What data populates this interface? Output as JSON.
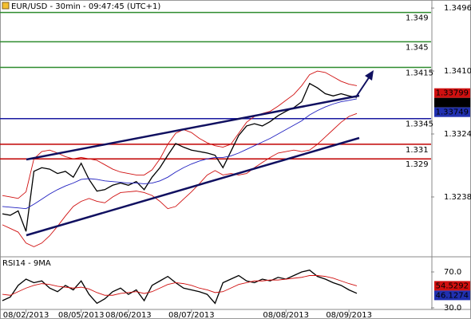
{
  "chart_data": [
    {
      "type": "line",
      "title": "EUR/USD - 30min - 09:47:45 (UTC+1)",
      "ylim": [
        1.3153,
        1.3507
      ],
      "yticks": [
        1.3238,
        1.3324,
        {
          "value": 1.341,
          "label": "1.3410"
        },
        1.3496
      ],
      "series": [
        {
          "color": "#000000",
          "values": [
            1.3215,
            1.3213,
            1.3219,
            1.3191,
            1.3273,
            1.3278,
            1.3276,
            1.327,
            1.3273,
            1.3265,
            1.3284,
            1.3262,
            1.3246,
            1.3248,
            1.3254,
            1.3257,
            1.3254,
            1.3259,
            1.3248,
            1.3265,
            1.3278,
            1.3295,
            1.3311,
            1.3306,
            1.3302,
            1.33,
            1.3298,
            1.3295,
            1.3278,
            1.33,
            1.3322,
            1.3335,
            1.3338,
            1.3335,
            1.3341,
            1.3349,
            1.3355,
            1.336,
            1.3368,
            1.3393,
            1.3387,
            1.3379,
            1.3376,
            1.3379,
            1.3376,
            1.3374
          ]
        },
        {
          "color": "#2020c0",
          "values": [
            1.3225,
            1.3224,
            1.3223,
            1.3222,
            1.3228,
            1.3235,
            1.3242,
            1.3248,
            1.3253,
            1.3257,
            1.3262,
            1.3263,
            1.3262,
            1.326,
            1.3259,
            1.3258,
            1.3257,
            1.3257,
            1.3256,
            1.3257,
            1.326,
            1.3265,
            1.3272,
            1.3278,
            1.3283,
            1.3287,
            1.329,
            1.3292,
            1.3292,
            1.3294,
            1.3298,
            1.3303,
            1.3308,
            1.3313,
            1.3318,
            1.3324,
            1.333,
            1.3336,
            1.3342,
            1.335,
            1.3356,
            1.3361,
            1.3365,
            1.3368,
            1.337,
            1.3372
          ]
        },
        {
          "color": "#d01010",
          "values": [
            1.324,
            1.3238,
            1.3236,
            1.3245,
            1.329,
            1.33,
            1.3302,
            1.3298,
            1.3293,
            1.329,
            1.3292,
            1.329,
            1.3288,
            1.3282,
            1.3276,
            1.3272,
            1.327,
            1.3268,
            1.3268,
            1.3275,
            1.329,
            1.331,
            1.3325,
            1.333,
            1.3326,
            1.3318,
            1.3312,
            1.3308,
            1.3306,
            1.331,
            1.3325,
            1.334,
            1.3348,
            1.3352,
            1.3355,
            1.3362,
            1.337,
            1.3378,
            1.339,
            1.3405,
            1.341,
            1.3408,
            1.3402,
            1.3396,
            1.3392,
            1.339
          ]
        },
        {
          "color": "#d01010",
          "values": [
            1.32,
            1.3195,
            1.319,
            1.3175,
            1.317,
            1.3175,
            1.3185,
            1.3198,
            1.3212,
            1.3225,
            1.3232,
            1.3236,
            1.3232,
            1.323,
            1.3238,
            1.3244,
            1.3245,
            1.3246,
            1.3244,
            1.324,
            1.3232,
            1.3222,
            1.3225,
            1.3235,
            1.3245,
            1.3256,
            1.3268,
            1.3274,
            1.3268,
            1.327,
            1.3268,
            1.327,
            1.3278,
            1.3285,
            1.3292,
            1.3298,
            1.33,
            1.3302,
            1.33,
            1.3302,
            1.331,
            1.332,
            1.333,
            1.334,
            1.3348,
            1.3352
          ]
        }
      ],
      "levels": [
        {
          "value": 1.349,
          "color": "#2e8b2e"
        },
        {
          "value": 1.345,
          "color": "#2e8b2e"
        },
        {
          "value": 1.3415,
          "color": "#2e8b2e"
        },
        {
          "value": 1.3345,
          "color": "#1a1aa0"
        },
        {
          "value": 1.331,
          "color": "#c00000"
        },
        {
          "value": 1.329,
          "color": "#c00000"
        }
      ],
      "price_tags": [
        {
          "value": 1.33799,
          "color": "#d01010"
        },
        {
          "value": 1.33759,
          "color": "#000000"
        },
        {
          "value": 1.33749,
          "color": "#2030b0"
        }
      ]
    },
    {
      "type": "line",
      "title": "RSI14 - 9MA",
      "ylim": [
        28.2,
        86.9
      ],
      "yticks": [
        {
          "value": 30,
          "label": "30.0"
        },
        {
          "value": 70,
          "label": "70.0"
        }
      ],
      "categories": [
        null,
        null,
        null,
        "08/02/2013",
        null,
        null,
        null,
        null,
        null,
        null,
        "08/05/2013",
        null,
        null,
        null,
        null,
        null,
        "08/06/2013",
        null,
        null,
        null,
        null,
        null,
        null,
        null,
        "08/07/2013",
        null,
        null,
        null,
        null,
        null,
        null,
        null,
        null,
        null,
        null,
        null,
        "08/08/2013",
        null,
        null,
        null,
        null,
        null,
        null,
        null,
        "08/09/2013",
        null
      ],
      "series": [
        {
          "color": "#000000",
          "values": [
            38,
            42,
            55,
            62,
            58,
            60,
            52,
            48,
            55,
            50,
            60,
            45,
            35,
            40,
            48,
            52,
            45,
            50,
            38,
            55,
            60,
            65,
            58,
            52,
            50,
            48,
            45,
            35,
            58,
            62,
            66,
            60,
            58,
            62,
            60,
            64,
            62,
            66,
            70,
            72,
            65,
            62,
            58,
            55,
            50,
            46.1274
          ]
        },
        {
          "color": "#d01010",
          "values": [
            45,
            44,
            48,
            52,
            55,
            57,
            56,
            54,
            53,
            52,
            53,
            51,
            47,
            44,
            44,
            46,
            47,
            48,
            46,
            48,
            52,
            56,
            58,
            57,
            55,
            52,
            50,
            47,
            48,
            52,
            56,
            58,
            60,
            60,
            61,
            61,
            62,
            63,
            64,
            66,
            66,
            65,
            63,
            60,
            57,
            54.5292
          ]
        }
      ],
      "price_tags": [
        {
          "value": 54.5292,
          "color": "#d01010"
        },
        {
          "value": 46.1274,
          "color": "#2030b0"
        }
      ]
    }
  ]
}
